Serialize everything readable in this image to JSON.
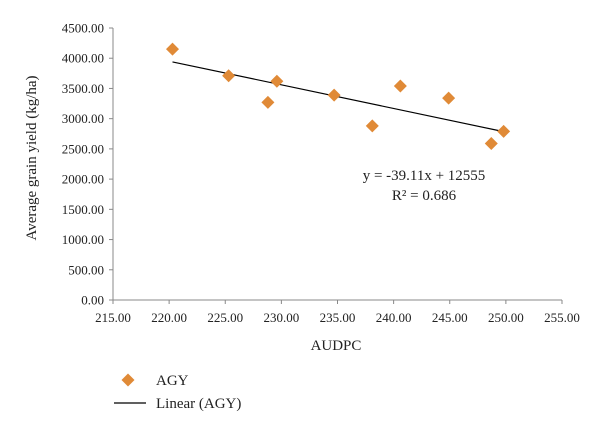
{
  "chart_data": {
    "type": "scatter",
    "xlabel": "AUDPC",
    "ylabel": "Average grain yield (kg/ha)",
    "xlim": [
      215,
      255
    ],
    "ylim": [
      0,
      4500
    ],
    "x_ticks": [
      "215.00",
      "220.00",
      "225.00",
      "230.00",
      "235.00",
      "240.00",
      "245.00",
      "250.00",
      "255.00"
    ],
    "y_ticks": [
      "0.00",
      "500.00",
      "1000.00",
      "1500.00",
      "2000.00",
      "2500.00",
      "3000.00",
      "3500.00",
      "4000.00",
      "4500.00"
    ],
    "grid": false,
    "legend_position": "bottom-left",
    "series": [
      {
        "name": "AGY",
        "type": "scatter",
        "marker": "diamond",
        "color": "#E08A37",
        "points": [
          {
            "x": 220.3,
            "y": 4150
          },
          {
            "x": 225.3,
            "y": 3710
          },
          {
            "x": 228.8,
            "y": 3270
          },
          {
            "x": 229.6,
            "y": 3620
          },
          {
            "x": 234.7,
            "y": 3390
          },
          {
            "x": 238.1,
            "y": 2880
          },
          {
            "x": 240.6,
            "y": 3540
          },
          {
            "x": 244.9,
            "y": 3340
          },
          {
            "x": 248.7,
            "y": 2590
          },
          {
            "x": 249.8,
            "y": 2790
          }
        ]
      },
      {
        "name": "Linear (AGY)",
        "type": "line",
        "color": "#000000",
        "slope": -39.11,
        "intercept": 12555,
        "x_range": [
          220.3,
          249.8
        ]
      }
    ],
    "annotations": {
      "equation": "y = -39.11x + 12555",
      "r_squared": "R² = 0.686"
    }
  }
}
